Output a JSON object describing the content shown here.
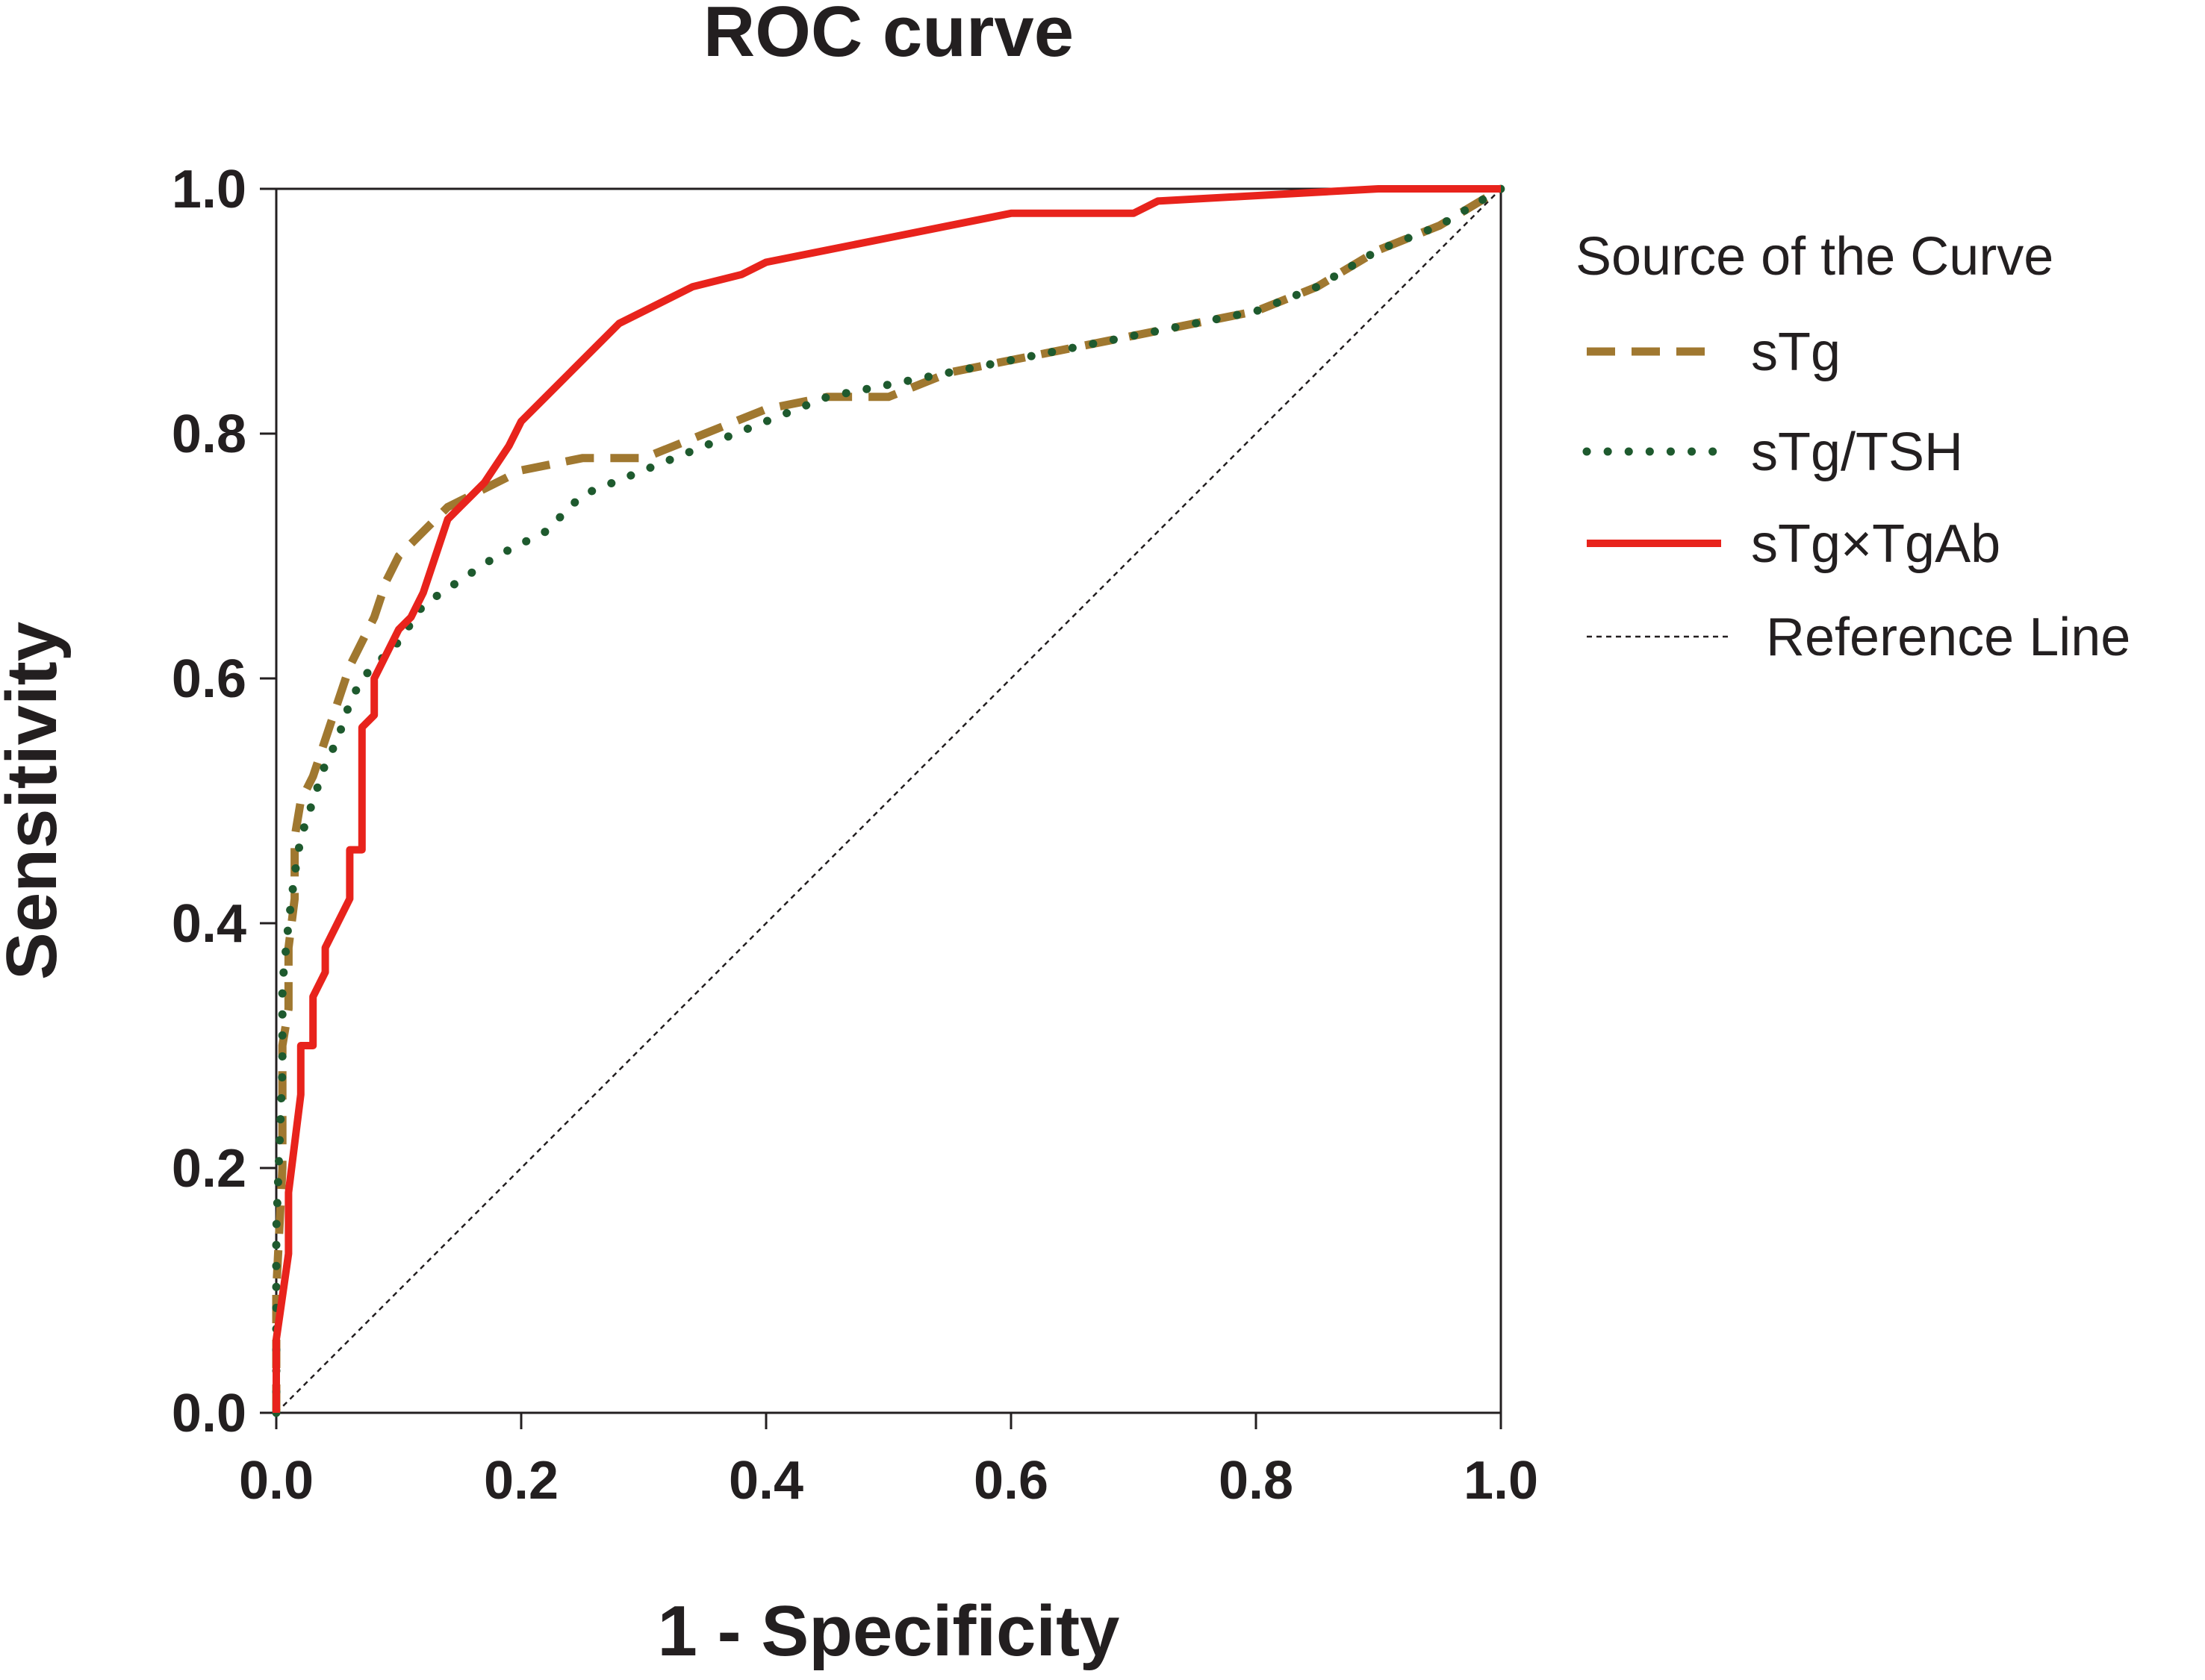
{
  "chart_data": {
    "type": "line",
    "title": "ROC curve",
    "xlabel": "1 - Specificity",
    "ylabel": "Sensitivity",
    "xlim": [
      0,
      1
    ],
    "ylim": [
      0,
      1
    ],
    "xticks": [
      "0.0",
      "0.2",
      "0.4",
      "0.6",
      "0.8",
      "1.0"
    ],
    "yticks": [
      "0.0",
      "0.2",
      "0.4",
      "0.6",
      "0.8",
      "1.0"
    ],
    "grid": false,
    "legend": {
      "title": "Source of the Curve",
      "placement": "right"
    },
    "series": [
      {
        "name": "sTg",
        "style": "dashed",
        "color": "#a07830",
        "x": [
          0,
          0,
          0.005,
          0.005,
          0.01,
          0.01,
          0.015,
          0.015,
          0.02,
          0.03,
          0.04,
          0.05,
          0.06,
          0.07,
          0.08,
          0.09,
          0.1,
          0.12,
          0.14,
          0.16,
          0.2,
          0.25,
          0.3,
          0.35,
          0.4,
          0.45,
          0.5,
          0.55,
          0.6,
          0.65,
          0.7,
          0.75,
          0.8,
          0.85,
          0.9,
          0.95,
          1.0
        ],
        "y": [
          0,
          0.1,
          0.2,
          0.3,
          0.33,
          0.38,
          0.42,
          0.47,
          0.5,
          0.52,
          0.55,
          0.58,
          0.61,
          0.63,
          0.65,
          0.68,
          0.7,
          0.72,
          0.74,
          0.75,
          0.77,
          0.78,
          0.78,
          0.8,
          0.82,
          0.83,
          0.83,
          0.85,
          0.86,
          0.87,
          0.88,
          0.89,
          0.9,
          0.92,
          0.95,
          0.97,
          1.0
        ]
      },
      {
        "name": "sTg/TSH",
        "style": "dotted",
        "color": "#1e5a2e",
        "x": [
          0,
          0,
          0.005,
          0.005,
          0.01,
          0.015,
          0.02,
          0.03,
          0.04,
          0.05,
          0.06,
          0.07,
          0.08,
          0.1,
          0.12,
          0.15,
          0.18,
          0.22,
          0.25,
          0.3,
          0.35,
          0.4,
          0.45,
          0.5,
          0.55,
          0.6,
          0.65,
          0.7,
          0.75,
          0.8,
          0.85,
          0.9,
          0.95,
          1.0
        ],
        "y": [
          0,
          0.15,
          0.28,
          0.35,
          0.4,
          0.44,
          0.47,
          0.5,
          0.53,
          0.55,
          0.58,
          0.6,
          0.61,
          0.63,
          0.66,
          0.68,
          0.7,
          0.72,
          0.75,
          0.77,
          0.79,
          0.81,
          0.83,
          0.84,
          0.85,
          0.86,
          0.87,
          0.88,
          0.89,
          0.9,
          0.92,
          0.95,
          0.97,
          1.0
        ]
      },
      {
        "name": "sTg×TgAb",
        "style": "solid",
        "color": "#e8231c",
        "x": [
          0,
          0,
          0.01,
          0.01,
          0.015,
          0.02,
          0.02,
          0.03,
          0.03,
          0.04,
          0.04,
          0.05,
          0.06,
          0.06,
          0.07,
          0.07,
          0.08,
          0.08,
          0.09,
          0.1,
          0.11,
          0.12,
          0.13,
          0.14,
          0.15,
          0.17,
          0.19,
          0.2,
          0.22,
          0.24,
          0.26,
          0.28,
          0.3,
          0.34,
          0.38,
          0.4,
          0.45,
          0.5,
          0.55,
          0.6,
          0.7,
          0.72,
          0.9,
          1.0
        ],
        "y": [
          0,
          0.06,
          0.13,
          0.18,
          0.22,
          0.26,
          0.3,
          0.3,
          0.34,
          0.36,
          0.38,
          0.4,
          0.42,
          0.46,
          0.46,
          0.56,
          0.57,
          0.6,
          0.62,
          0.64,
          0.65,
          0.67,
          0.7,
          0.73,
          0.74,
          0.76,
          0.79,
          0.81,
          0.83,
          0.85,
          0.87,
          0.89,
          0.9,
          0.92,
          0.93,
          0.94,
          0.95,
          0.96,
          0.97,
          0.98,
          0.98,
          0.99,
          1.0,
          1.0
        ]
      },
      {
        "name": "Reference Line",
        "style": "thin-dashed",
        "color": "#231f20",
        "x": [
          0,
          1
        ],
        "y": [
          0,
          1
        ]
      }
    ]
  }
}
